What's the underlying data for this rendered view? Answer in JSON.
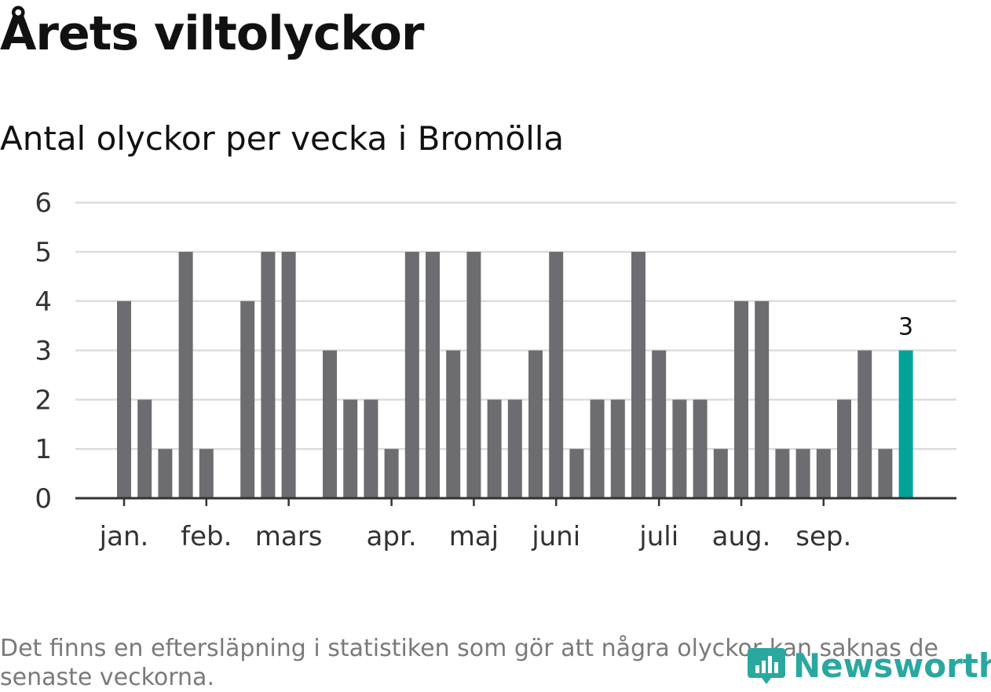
{
  "title": "Årets viltolyckor",
  "subtitle": "Antal olyckor per vecka i Bromölla",
  "footnote": "Det finns en eftersläpning i statistiken som gör att några olyckor kan saknas de senaste veckorna.",
  "logo_text": "Newsworthy",
  "colors": {
    "bar": "#6d6c71",
    "highlight": "#00a29a",
    "grid": "#dddddd",
    "axis": "#333333",
    "logo": "#2aa8a0"
  },
  "chart_data": {
    "type": "bar",
    "title": "Antal olyckor per vecka i Bromölla",
    "xlabel": "",
    "ylabel": "",
    "ylim": [
      0,
      6
    ],
    "yticks": [
      0,
      1,
      2,
      3,
      4,
      5,
      6
    ],
    "grid": true,
    "month_labels": [
      {
        "label": "jan.",
        "week": 1
      },
      {
        "label": "feb.",
        "week": 5
      },
      {
        "label": "mars",
        "week": 9
      },
      {
        "label": "apr.",
        "week": 14
      },
      {
        "label": "maj",
        "week": 18
      },
      {
        "label": "juni",
        "week": 22
      },
      {
        "label": "juli",
        "week": 27
      },
      {
        "label": "aug.",
        "week": 31
      },
      {
        "label": "sep.",
        "week": 35
      }
    ],
    "weeks": [
      1,
      2,
      3,
      4,
      5,
      6,
      7,
      8,
      9,
      10,
      11,
      12,
      13,
      14,
      15,
      16,
      17,
      18,
      19,
      20,
      21,
      22,
      23,
      24,
      25,
      26,
      27,
      28,
      29,
      30,
      31,
      32,
      33,
      34,
      35,
      36,
      37,
      38,
      39
    ],
    "values": [
      4,
      2,
      1,
      5,
      1,
      0,
      4,
      5,
      5,
      0,
      3,
      2,
      2,
      1,
      5,
      5,
      3,
      5,
      2,
      2,
      3,
      5,
      1,
      2,
      2,
      5,
      3,
      2,
      2,
      1,
      4,
      4,
      1,
      1,
      1,
      2,
      3,
      1,
      3
    ],
    "highlight_index": 38,
    "highlight_label": "3"
  }
}
